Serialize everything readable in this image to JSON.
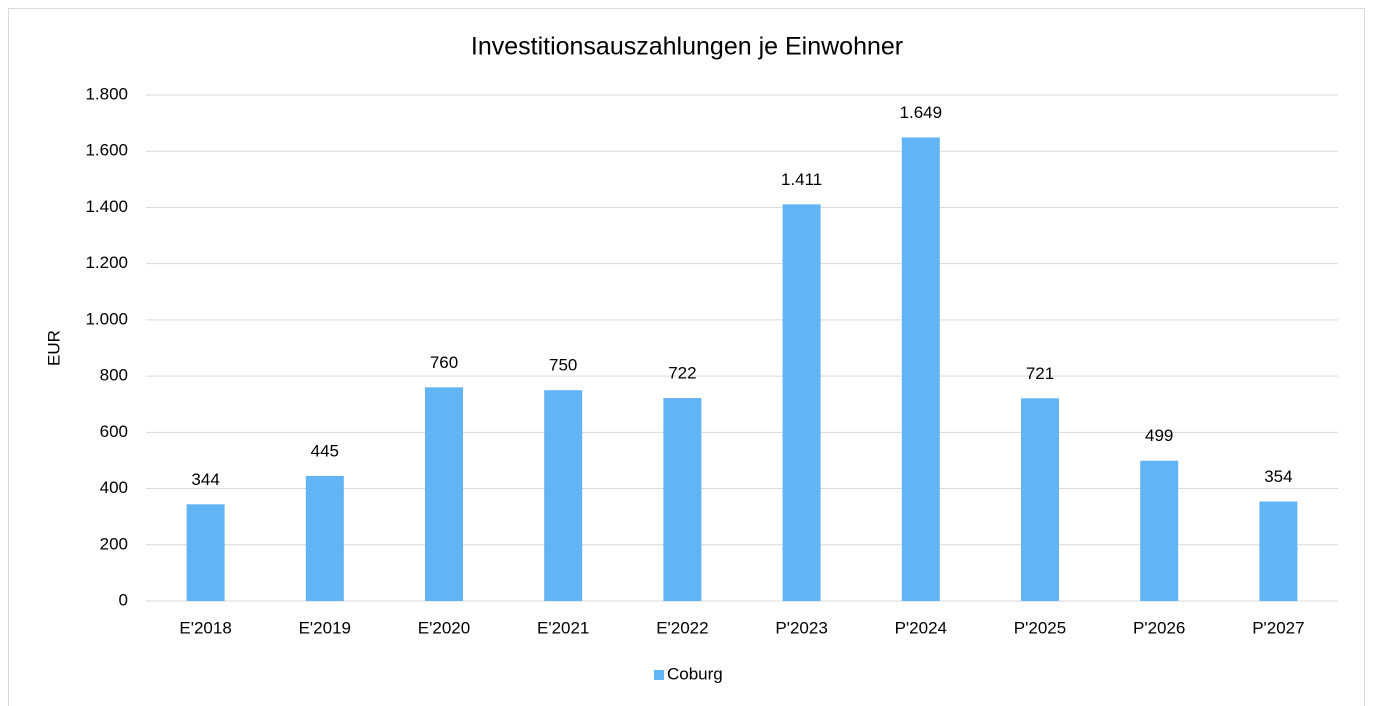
{
  "chart_data": {
    "type": "bar",
    "title": "Investitionsauszahlungen je Einwohner",
    "y_label": "EUR",
    "categories": [
      "E'2018",
      "E'2019",
      "E'2020",
      "E'2021",
      "E'2022",
      "P'2023",
      "P'2024",
      "P'2025",
      "P'2026",
      "P'2027"
    ],
    "series": [
      {
        "name": "Coburg",
        "color": "#63b4f5",
        "values": [
          344,
          445,
          760,
          750,
          722,
          1411,
          1649,
          721,
          499,
          354
        ],
        "value_labels": [
          "344",
          "445",
          "760",
          "750",
          "722",
          "1.411",
          "1.649",
          "721",
          "499",
          "354"
        ]
      }
    ],
    "ylim": [
      0,
      1800
    ],
    "yticks": [
      0,
      200,
      400,
      600,
      800,
      {
        "value": 1000,
        "label": "1.000"
      },
      {
        "value": 1200,
        "label": "1.200"
      },
      {
        "value": 1400,
        "label": "1.400"
      },
      {
        "value": 1600,
        "label": "1.600"
      },
      {
        "value": 1800,
        "label": "1.800"
      }
    ],
    "grid": true,
    "legend": "bottom"
  }
}
